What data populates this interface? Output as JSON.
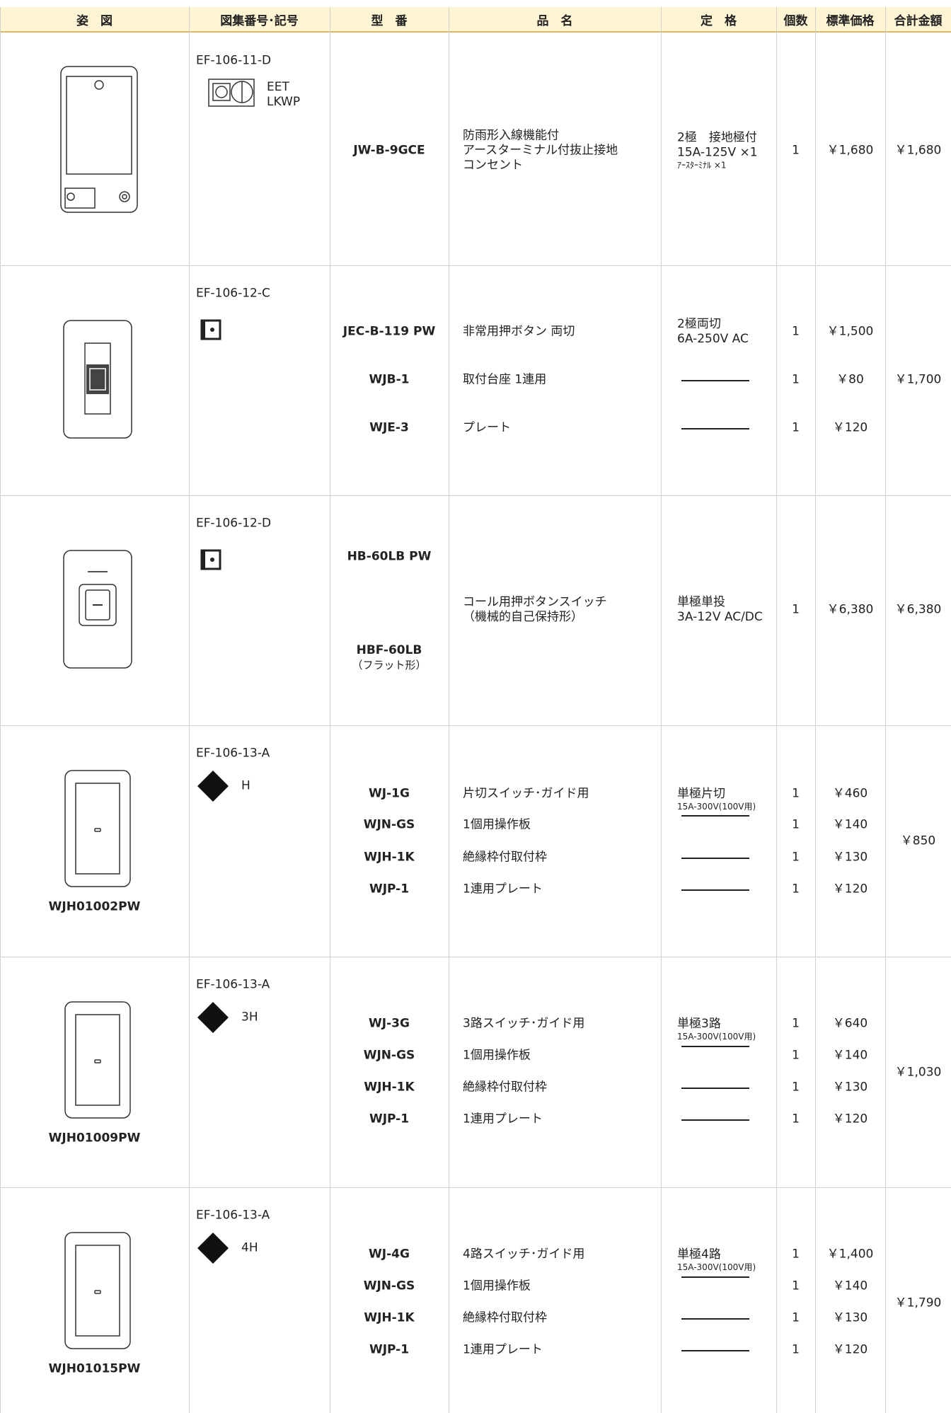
{
  "header": {
    "columns": [
      "姿　図",
      "図集番号･記号",
      "型　番",
      "品　名",
      "定　格",
      "個数",
      "標準価格",
      "合計金額"
    ]
  },
  "rows": [
    {
      "code": "EF-106-11-D",
      "symbol_label": [
        "EET",
        "LKWP"
      ],
      "items": [
        {
          "model": "JW-B-9GCE",
          "name": [
            "防雨形入線機能付",
            "アースターミナル付抜止接地",
            "コンセント"
          ],
          "rating": [
            "2極　接地極付",
            "15A-125V ×1",
            "ｱｰｽﾀｰﾐﾅﾙ ×1"
          ],
          "qty": "1",
          "price": "￥1,680"
        }
      ],
      "total": "￥1,680"
    },
    {
      "code": "EF-106-12-C",
      "items": [
        {
          "model": "JEC-B-119 PW",
          "name": [
            "非常用押ボタン 両切"
          ],
          "rating": [
            "2極両切",
            "6A-250V AC"
          ],
          "qty": "1",
          "price": "￥1,500"
        },
        {
          "model": "WJB-1",
          "name": [
            "取付台座 1連用"
          ],
          "qty": "1",
          "price": "￥80"
        },
        {
          "model": "WJE-3",
          "name": [
            "プレート"
          ],
          "qty": "1",
          "price": "￥120"
        }
      ],
      "total": "￥1,700"
    },
    {
      "code": "EF-106-12-D",
      "items": [
        {
          "model": "HB-60LB PW"
        },
        {
          "name": [
            "コール用押ボタンスイッチ",
            "（機械的自己保持形）"
          ],
          "rating": [
            "単極単投",
            "3A-12V AC/DC"
          ],
          "qty": "1",
          "price": "￥6,380"
        },
        {
          "model": "HBF-60LB",
          "note": "（フラット形）"
        }
      ],
      "total": "￥6,380"
    },
    {
      "figure_label": "WJH01002PW",
      "code": "EF-106-13-A",
      "symbol_label": [
        "H"
      ],
      "items": [
        {
          "model": "WJ-1G",
          "name": [
            "片切スイッチ･ガイド用"
          ],
          "rating": [
            "単極片切",
            "15A-300V(100V用)"
          ],
          "qty": "1",
          "price": "￥460"
        },
        {
          "model": "WJN-GS",
          "name": [
            "1個用操作板"
          ],
          "qty": "1",
          "price": "￥140"
        },
        {
          "model": "WJH-1K",
          "name": [
            "絶縁枠付取付枠"
          ],
          "qty": "1",
          "price": "￥130"
        },
        {
          "model": "WJP-1",
          "name": [
            "1連用プレート"
          ],
          "qty": "1",
          "price": "￥120"
        }
      ],
      "total": "￥850"
    },
    {
      "figure_label": "WJH01009PW",
      "code": "EF-106-13-A",
      "symbol_label": [
        "3H"
      ],
      "items": [
        {
          "model": "WJ-3G",
          "name": [
            "3路スイッチ･ガイド用"
          ],
          "rating": [
            "単極3路",
            "15A-300V(100V用)"
          ],
          "qty": "1",
          "price": "￥640"
        },
        {
          "model": "WJN-GS",
          "name": [
            "1個用操作板"
          ],
          "qty": "1",
          "price": "￥140"
        },
        {
          "model": "WJH-1K",
          "name": [
            "絶縁枠付取付枠"
          ],
          "qty": "1",
          "price": "￥130"
        },
        {
          "model": "WJP-1",
          "name": [
            "1連用プレート"
          ],
          "qty": "1",
          "price": "￥120"
        }
      ],
      "total": "￥1,030"
    },
    {
      "figure_label": "WJH01015PW",
      "code": "EF-106-13-A",
      "symbol_label": [
        "4H"
      ],
      "items": [
        {
          "model": "WJ-4G",
          "name": [
            "4路スイッチ･ガイド用"
          ],
          "rating": [
            "単極4路",
            "15A-300V(100V用)"
          ],
          "qty": "1",
          "price": "￥1,400"
        },
        {
          "model": "WJN-GS",
          "name": [
            "1個用操作板"
          ],
          "qty": "1",
          "price": "￥140"
        },
        {
          "model": "WJH-1K",
          "name": [
            "絶縁枠付取付枠"
          ],
          "qty": "1",
          "price": "￥130"
        },
        {
          "model": "WJP-1",
          "name": [
            "1連用プレート"
          ],
          "qty": "1",
          "price": "￥120"
        }
      ],
      "total": "￥1,790"
    }
  ]
}
